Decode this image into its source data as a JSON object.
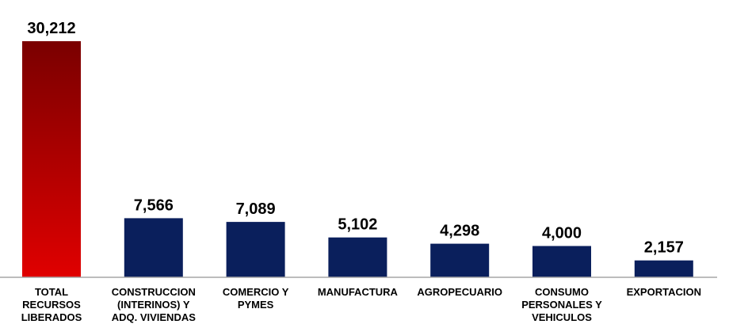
{
  "chart_data": {
    "type": "bar",
    "categories": [
      [
        "TOTAL",
        "RECURSOS",
        "LIBERADOS"
      ],
      [
        "CONSTRUCCION",
        "(INTERINOS)  Y",
        "ADQ. VIVIENDAS"
      ],
      [
        "COMERCIO Y",
        "PYMES"
      ],
      [
        "MANUFACTURA"
      ],
      [
        "AGROPECUARIO"
      ],
      [
        "CONSUMO",
        "PERSONALES Y",
        "VEHICULOS"
      ],
      [
        "EXPORTACION"
      ]
    ],
    "values": [
      30212,
      7566,
      7089,
      5102,
      4298,
      4000,
      2157
    ],
    "value_labels": [
      "30,212",
      "7,566",
      "7,089",
      "5,102",
      "4,298",
      "4,000",
      "2,157"
    ],
    "title": "",
    "xlabel": "",
    "ylabel": "",
    "ylim": [
      0,
      30212
    ],
    "grid": false,
    "legend": "none",
    "colors": {
      "total_gradient_top": "#7a0000",
      "total_gradient_bottom": "#e00000",
      "bar": "#0a1f5c",
      "axis": "#a6a6a6"
    }
  }
}
